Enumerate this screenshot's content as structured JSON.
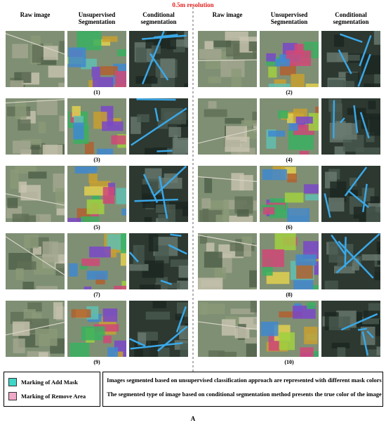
{
  "header": {
    "title": "0.5m resolution"
  },
  "panels": [
    {
      "columns": [
        "Raw image",
        "Unsupervised Segmentation",
        "Conditional segmentation"
      ],
      "labels": [
        "(1)",
        "(3)",
        "(5)",
        "(7)",
        "(9)"
      ]
    },
    {
      "columns": [
        "Raw image",
        "Unsupervised Segmentation",
        "Conditional segmentation"
      ],
      "labels": [
        "(2)",
        "(4)",
        "(6)",
        "(8)",
        "(10)"
      ]
    }
  ],
  "legend": {
    "items": [
      "Marking of Add Mask",
      "Marking of Remove Area"
    ],
    "notes": [
      "Images segmented based on unsupervised classification approach are represented with different mask colors",
      "The segmented type of image based on conditional segmentation method presents the true color of the image"
    ]
  },
  "footer": "A"
}
